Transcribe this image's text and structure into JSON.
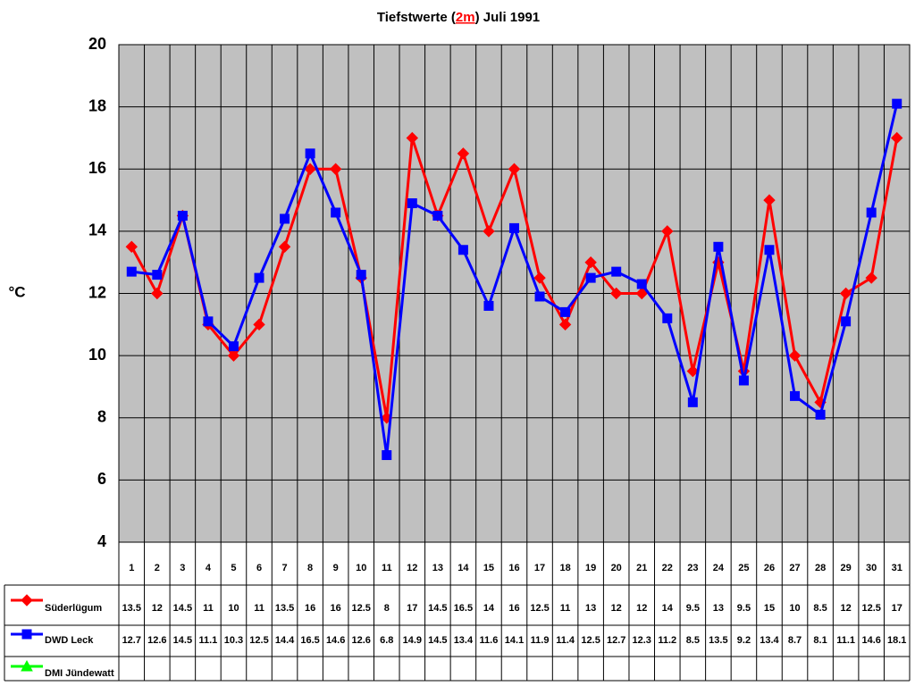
{
  "chart_data": {
    "type": "line",
    "title": {
      "before": "Tiefstwerte (",
      "highlight": "2m",
      "after": ") Juli 1991"
    },
    "y_label": "°C",
    "categories": [
      "1",
      "2",
      "3",
      "4",
      "5",
      "6",
      "7",
      "8",
      "9",
      "10",
      "11",
      "12",
      "13",
      "14",
      "15",
      "16",
      "17",
      "18",
      "19",
      "20",
      "21",
      "22",
      "23",
      "24",
      "25",
      "26",
      "27",
      "28",
      "29",
      "30",
      "31"
    ],
    "ylim": [
      4,
      20
    ],
    "yticks": [
      4,
      6,
      8,
      10,
      12,
      14,
      16,
      18,
      20
    ],
    "grid": true,
    "plot_background": "#c0c0c0",
    "series": [
      {
        "name": "Süderlügum",
        "color": "#ff0000",
        "marker": "diamond",
        "values": [
          13.5,
          12,
          14.5,
          11,
          10,
          11,
          13.5,
          16,
          16,
          12.5,
          8,
          17,
          14.5,
          16.5,
          14,
          16,
          12.5,
          11,
          13,
          12,
          12,
          14,
          9.5,
          13,
          9.5,
          15,
          10,
          8.5,
          12,
          12.5,
          17
        ]
      },
      {
        "name": "DWD Leck",
        "color": "#0000ff",
        "marker": "square",
        "values": [
          12.7,
          12.6,
          14.5,
          11.1,
          10.3,
          12.5,
          14.4,
          16.5,
          14.6,
          12.6,
          6.8,
          14.9,
          14.5,
          13.4,
          11.6,
          14.1,
          11.9,
          11.4,
          12.5,
          12.7,
          12.3,
          11.2,
          8.5,
          13.5,
          9.2,
          13.4,
          8.7,
          8.1,
          11.1,
          14.6,
          18.1
        ]
      },
      {
        "name": "DMI Jündewatt",
        "color": "#00ff00",
        "marker": "triangle",
        "values": [
          null,
          null,
          null,
          null,
          null,
          null,
          null,
          null,
          null,
          null,
          null,
          null,
          null,
          null,
          null,
          null,
          null,
          null,
          null,
          null,
          null,
          null,
          null,
          null,
          null,
          null,
          null,
          null,
          null,
          null,
          null
        ]
      }
    ]
  }
}
